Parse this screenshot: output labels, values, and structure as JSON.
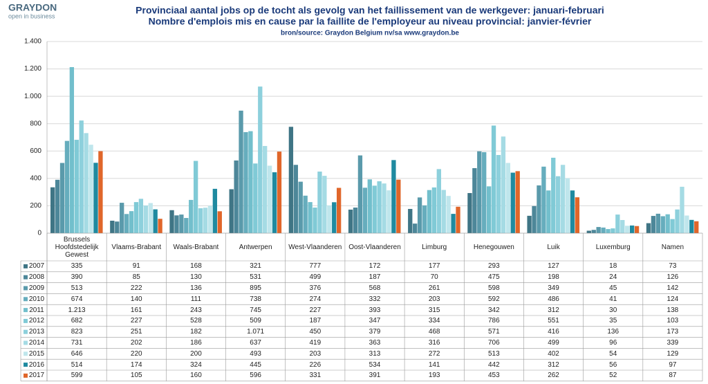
{
  "logo": {
    "name": "GRAYDON",
    "tagline": "open in business"
  },
  "chart_data": {
    "type": "bar",
    "title": "Provinciaal aantal jobs op de tocht als gevolg van het faillissement van de werkgever: januari-februari",
    "subtitle": "Nombre d'emplois mis en cause  par la faillite de l'employeur au niveau provincial: janvier-février",
    "source": "bron/source:  Graydon  Belgium nv/sa     www.graydon.be",
    "categories": [
      "Brussels Hoofdstedelijk Gewest",
      "Vlaams-Brabant",
      "Waals-Brabant",
      "Antwerpen",
      "West-Vlaanderen",
      "Oost-Vlaanderen",
      "Limburg",
      "Henegouwen",
      "Luik",
      "Luxemburg",
      "Namen"
    ],
    "ylim": [
      0,
      1400
    ],
    "yticks": [
      0,
      200,
      400,
      600,
      800,
      {
        "value": 1000,
        "label": "1.000"
      },
      {
        "value": 1200,
        "label": "1.200"
      },
      {
        "value": 1400,
        "label": "1.400"
      }
    ],
    "grid": true,
    "series": [
      {
        "name": "2007",
        "color": "#3f7585",
        "values": [
          335,
          91,
          168,
          321,
          777,
          172,
          177,
          293,
          127,
          18,
          73
        ]
      },
      {
        "name": "2008",
        "color": "#4d8799",
        "values": [
          390,
          85,
          130,
          531,
          499,
          187,
          70,
          475,
          198,
          24,
          126
        ]
      },
      {
        "name": "2009",
        "color": "#5a9aab",
        "values": [
          513,
          222,
          136,
          895,
          376,
          568,
          261,
          598,
          349,
          45,
          142
        ]
      },
      {
        "name": "2010",
        "color": "#66adbd",
        "values": [
          674,
          140,
          111,
          738,
          274,
          332,
          203,
          592,
          486,
          41,
          124
        ]
      },
      {
        "name": "2011",
        "color": "#72bfcc",
        "values": [
          1213,
          161,
          243,
          745,
          227,
          393,
          315,
          342,
          312,
          30,
          138
        ],
        "value_labels": [
          "1.213",
          "161",
          "243",
          "745",
          "227",
          "393",
          "315",
          "342",
          "312",
          "30",
          "138"
        ]
      },
      {
        "name": "2012",
        "color": "#80cad6",
        "values": [
          682,
          227,
          528,
          509,
          187,
          347,
          334,
          786,
          551,
          35,
          103
        ]
      },
      {
        "name": "2013",
        "color": "#8dd0dc",
        "values": [
          823,
          251,
          182,
          1071,
          450,
          379,
          468,
          571,
          416,
          136,
          173
        ],
        "value_labels": [
          "823",
          "251",
          "182",
          "1.071",
          "450",
          "379",
          "468",
          "571",
          "416",
          "136",
          "173"
        ]
      },
      {
        "name": "2014",
        "color": "#a5dbe4",
        "values": [
          731,
          202,
          186,
          637,
          419,
          363,
          316,
          706,
          499,
          96,
          339
        ]
      },
      {
        "name": "2015",
        "color": "#bfe6ec",
        "values": [
          646,
          220,
          200,
          493,
          203,
          313,
          272,
          513,
          402,
          54,
          129
        ]
      },
      {
        "name": "2016",
        "color": "#1f8aa0",
        "values": [
          514,
          174,
          324,
          445,
          226,
          534,
          141,
          442,
          312,
          56,
          97
        ]
      },
      {
        "name": "2017",
        "color": "#e0662a",
        "values": [
          599,
          105,
          160,
          596,
          331,
          391,
          193,
          453,
          262,
          52,
          87
        ]
      }
    ]
  }
}
